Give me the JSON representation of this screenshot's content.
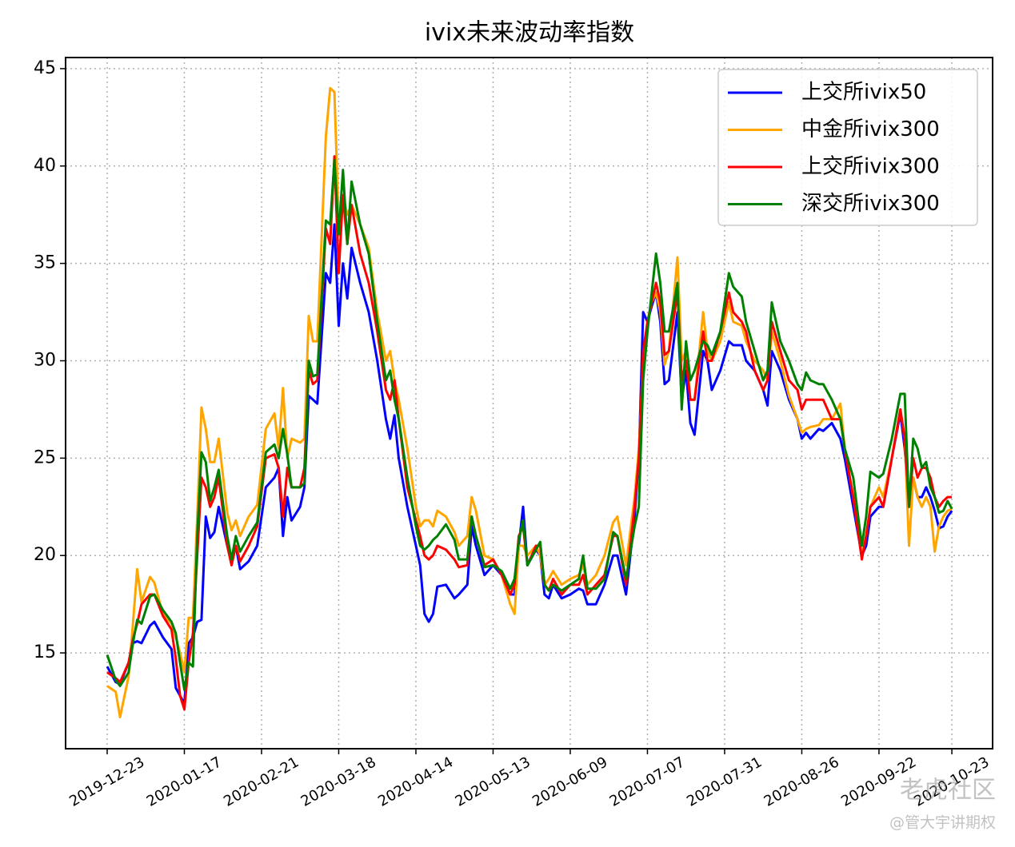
{
  "chart_data": {
    "type": "line",
    "title": "ivix未来波动率指数",
    "x": [
      0,
      2,
      3,
      5,
      6,
      7,
      8,
      10,
      11,
      13,
      15,
      16,
      17,
      18,
      19,
      20,
      21,
      22,
      23,
      24,
      25,
      26,
      28,
      29,
      30,
      31,
      33,
      35,
      37,
      39,
      40,
      41,
      42,
      43,
      45,
      46,
      47,
      48,
      49,
      51,
      52,
      53,
      54,
      55,
      56,
      57,
      59,
      61,
      63,
      65,
      66,
      67,
      68,
      70,
      72,
      73,
      74,
      75,
      76,
      77,
      79,
      81,
      82,
      84,
      85,
      86,
      88,
      90,
      92,
      94,
      95,
      96,
      97,
      98,
      100,
      101,
      102,
      103,
      104,
      106,
      108,
      110,
      111,
      112,
      114,
      116,
      118,
      119,
      121,
      123,
      124,
      125,
      126,
      127,
      128,
      129,
      130,
      131,
      133,
      134,
      135,
      136,
      137,
      139,
      140,
      141,
      143,
      145,
      146,
      148,
      149,
      151,
      153,
      154,
      155,
      157,
      159,
      161,
      162,
      163,
      164,
      166,
      167,
      169,
      171,
      172,
      174,
      176,
      177,
      178,
      180,
      181,
      183,
      185,
      186,
      187,
      188,
      189,
      190,
      191,
      192,
      193,
      194,
      195,
      196,
      197
    ],
    "series": [
      {
        "name": "上交所ivix50",
        "color": "#0000ff",
        "values": [
          14.3,
          13.5,
          13.4,
          14.5,
          15.5,
          15.6,
          15.5,
          16.4,
          16.6,
          15.8,
          15.2,
          13.2,
          12.8,
          12.4,
          15.5,
          15.8,
          16.6,
          16.7,
          22.0,
          20.9,
          21.2,
          22.5,
          20.5,
          19.8,
          20.5,
          19.3,
          19.7,
          20.5,
          23.5,
          24.0,
          24.5,
          21.0,
          23.0,
          21.8,
          22.5,
          23.5,
          28.2,
          28.0,
          27.8,
          34.5,
          34.0,
          37.0,
          31.8,
          35.0,
          33.2,
          35.8,
          34.0,
          32.5,
          30.0,
          27.0,
          26.0,
          27.2,
          25.0,
          22.5,
          20.5,
          19.5,
          17.0,
          16.6,
          17.0,
          18.4,
          18.5,
          17.8,
          18.0,
          18.5,
          21.5,
          20.5,
          19.0,
          19.5,
          19.0,
          18.0,
          18.0,
          20.5,
          22.5,
          19.5,
          20.3,
          20.0,
          18.0,
          17.8,
          18.5,
          17.8,
          18.0,
          18.3,
          18.2,
          17.5,
          17.5,
          18.5,
          20.0,
          20.0,
          18.0,
          22.0,
          25.0,
          32.5,
          32.0,
          32.8,
          33.5,
          32.0,
          28.8,
          29.0,
          32.5,
          28.0,
          29.5,
          26.8,
          26.2,
          30.5,
          30.0,
          28.5,
          29.5,
          31.0,
          30.8,
          30.8,
          30.0,
          29.5,
          28.5,
          27.7,
          30.5,
          29.5,
          28.0,
          27.0,
          26.0,
          26.3,
          26.0,
          26.5,
          26.4,
          26.8,
          26.0,
          25.0,
          22.5,
          20.0,
          20.5,
          22.0,
          22.5,
          22.5,
          25.0,
          27.3,
          25.5,
          22.5,
          24.0,
          23.0,
          23.0,
          23.5,
          23.0,
          22.3,
          21.4,
          21.5,
          22.0,
          22.3
        ]
      },
      {
        "name": "中金所ivix300",
        "color": "#ffa500",
        "values": [
          13.3,
          13.0,
          11.7,
          13.8,
          16.5,
          19.3,
          17.6,
          18.9,
          18.6,
          17.0,
          16.5,
          15.8,
          15.0,
          14.0,
          16.8,
          16.8,
          22.0,
          27.6,
          26.5,
          24.8,
          24.8,
          26.0,
          22.2,
          21.3,
          21.8,
          21.0,
          22.0,
          22.6,
          26.5,
          27.3,
          25.5,
          28.6,
          25.0,
          26.0,
          25.8,
          26.0,
          32.3,
          31.0,
          31.0,
          41.5,
          44.0,
          43.8,
          37.0,
          38.5,
          37.5,
          38.0,
          37.0,
          35.8,
          32.5,
          30.0,
          30.5,
          29.0,
          28.0,
          25.5,
          22.5,
          21.5,
          21.8,
          21.8,
          21.5,
          22.3,
          22.0,
          21.2,
          20.5,
          21.0,
          23.0,
          22.3,
          20.0,
          19.8,
          19.0,
          17.5,
          17.0,
          20.5,
          20.5,
          20.0,
          20.5,
          20.0,
          18.5,
          18.8,
          19.2,
          18.5,
          18.8,
          19.0,
          19.5,
          18.5,
          19.0,
          20.0,
          21.7,
          22.0,
          19.5,
          23.0,
          25.5,
          30.0,
          32.0,
          33.0,
          33.5,
          32.5,
          29.8,
          30.5,
          35.3,
          30.0,
          30.5,
          28.0,
          28.0,
          32.5,
          30.5,
          30.0,
          31.0,
          33.0,
          32.0,
          31.8,
          31.0,
          30.0,
          29.5,
          29.0,
          31.5,
          30.0,
          28.2,
          27.0,
          26.3,
          26.5,
          26.6,
          26.7,
          27.0,
          27.0,
          27.8,
          25.5,
          23.0,
          20.0,
          21.0,
          22.5,
          23.5,
          23.0,
          25.0,
          27.5,
          26.0,
          20.5,
          24.0,
          23.0,
          22.5,
          23.0,
          22.5,
          20.2,
          21.5,
          22.0,
          22.3,
          22.4
        ]
      },
      {
        "name": "上交所ivix300",
        "color": "#ff0000",
        "values": [
          14.0,
          13.7,
          13.5,
          14.5,
          15.7,
          16.5,
          17.5,
          18.0,
          18.0,
          16.9,
          16.2,
          14.7,
          12.8,
          12.1,
          14.5,
          16.0,
          20.0,
          24.0,
          23.5,
          22.5,
          23.0,
          24.0,
          20.5,
          19.5,
          20.5,
          19.7,
          20.5,
          21.5,
          25.0,
          25.2,
          24.5,
          22.0,
          24.5,
          23.5,
          23.5,
          24.5,
          29.5,
          28.8,
          29.0,
          36.8,
          36.0,
          40.5,
          34.5,
          38.5,
          36.0,
          38.0,
          35.5,
          34.0,
          31.5,
          28.5,
          28.0,
          29.0,
          27.0,
          23.5,
          21.8,
          21.0,
          20.0,
          19.8,
          20.0,
          20.5,
          20.3,
          19.8,
          19.4,
          19.5,
          22.0,
          21.0,
          19.5,
          19.8,
          19.0,
          18.0,
          18.5,
          21.0,
          21.5,
          19.5,
          20.5,
          20.5,
          18.5,
          18.2,
          18.8,
          18.0,
          18.5,
          18.5,
          19.0,
          18.0,
          18.5,
          19.0,
          21.0,
          21.0,
          18.5,
          22.5,
          25.0,
          30.5,
          32.0,
          33.0,
          34.0,
          33.0,
          30.3,
          30.5,
          33.5,
          29.0,
          30.0,
          28.0,
          28.0,
          31.5,
          30.0,
          30.0,
          31.5,
          33.5,
          32.5,
          32.0,
          31.5,
          29.5,
          28.5,
          29.0,
          32.0,
          30.5,
          29.0,
          28.5,
          27.5,
          28.0,
          28.0,
          28.0,
          28.0,
          27.0,
          27.0,
          25.5,
          23.0,
          19.8,
          21.0,
          22.5,
          23.0,
          22.5,
          25.0,
          27.5,
          26.0,
          22.5,
          25.0,
          24.0,
          24.5,
          24.5,
          24.0,
          23.0,
          22.5,
          22.8,
          23.0,
          23.0
        ]
      },
      {
        "name": "深交所ivix300",
        "color": "#008000",
        "values": [
          14.9,
          13.6,
          13.3,
          14.0,
          15.5,
          16.7,
          16.5,
          17.9,
          18.0,
          17.2,
          16.6,
          16.0,
          14.5,
          13.1,
          14.5,
          14.3,
          21.0,
          25.3,
          24.8,
          22.8,
          23.5,
          24.4,
          21.0,
          19.8,
          21.0,
          20.2,
          21.0,
          21.7,
          25.3,
          25.7,
          25.0,
          26.5,
          25.2,
          23.5,
          23.5,
          23.7,
          30.0,
          29.2,
          29.3,
          37.2,
          37.0,
          40.3,
          36.5,
          39.8,
          36.0,
          39.2,
          37.0,
          35.5,
          32.0,
          29.0,
          29.5,
          28.0,
          27.0,
          24.0,
          21.5,
          20.5,
          20.3,
          20.5,
          20.8,
          21.0,
          21.6,
          20.8,
          19.8,
          19.8,
          22.0,
          21.0,
          19.4,
          19.5,
          19.2,
          18.3,
          18.8,
          20.8,
          21.8,
          19.5,
          20.3,
          20.7,
          18.5,
          18.2,
          18.5,
          18.2,
          18.5,
          18.8,
          20.0,
          18.3,
          18.3,
          18.8,
          21.2,
          21.0,
          18.8,
          21.5,
          22.5,
          29.0,
          31.5,
          33.5,
          35.5,
          34.0,
          31.5,
          31.5,
          34.0,
          27.5,
          31.0,
          29.0,
          29.5,
          31.0,
          30.8,
          30.3,
          31.5,
          34.5,
          33.8,
          33.3,
          32.0,
          30.5,
          29.0,
          29.5,
          33.0,
          31.0,
          30.0,
          28.8,
          28.5,
          29.4,
          29.0,
          28.8,
          28.8,
          28.0,
          27.0,
          25.5,
          24.0,
          20.5,
          22.0,
          24.3,
          24.0,
          24.2,
          26.0,
          28.3,
          28.3,
          22.5,
          26.0,
          25.5,
          24.5,
          24.8,
          23.5,
          23.0,
          22.2,
          22.3,
          22.8,
          22.4
        ]
      }
    ],
    "xlim": [
      -9.7,
      206.5
    ],
    "xticks": [
      {
        "value": 0,
        "label": "2019-12-23"
      },
      {
        "value": 18,
        "label": "2020-01-17"
      },
      {
        "value": 36,
        "label": "2020-02-21"
      },
      {
        "value": 54,
        "label": "2020-03-18"
      },
      {
        "value": 72,
        "label": "2020-04-14"
      },
      {
        "value": 90,
        "label": "2020-05-13"
      },
      {
        "value": 108,
        "label": "2020-06-09"
      },
      {
        "value": 126,
        "label": "2020-07-07"
      },
      {
        "value": 144,
        "label": "2020-07-31"
      },
      {
        "value": 162,
        "label": "2020-08-26"
      },
      {
        "value": 180,
        "label": "2020-09-22"
      },
      {
        "value": 197,
        "label": "2020-10-23"
      }
    ],
    "ylim": [
      10.08,
      45.57
    ],
    "yticks": [
      15,
      20,
      25,
      30,
      35,
      40,
      45
    ],
    "grid": true,
    "legend": "upper right",
    "watermark": [
      "老虎社区",
      "@管大宇讲期权"
    ]
  }
}
